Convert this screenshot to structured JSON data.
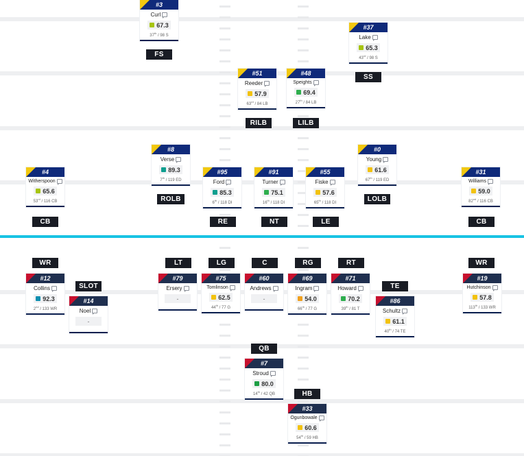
{
  "colors": {
    "offense_primary": "#1f2f4f",
    "offense_accent": "#c8102e",
    "defense_primary": "#0f2a7a",
    "defense_accent": "#f2c80f",
    "line_of_scrimmage": "#19c3e4",
    "grade_elite": "#0e9f8f",
    "grade_high": "#2fae4e",
    "grade_good": "#a6c40f",
    "grade_avg": "#f2c20f",
    "grade_low": "#f0a01f"
  },
  "icons": {
    "note": "note-icon"
  },
  "defense": {
    "fs": {
      "number": "#3",
      "name": "Curl",
      "grade": "67.3",
      "rank": "37",
      "rank_suffix": "th",
      "rank_total": "/ 98 S",
      "grade_color": "#a6c40f",
      "pos": "FS"
    },
    "ss": {
      "number": "#37",
      "name": "Lake",
      "grade": "65.3",
      "rank": "43",
      "rank_suffix": "rd",
      "rank_total": "/ 98 S",
      "grade_color": "#a6c40f",
      "pos": "SS"
    },
    "rilb": {
      "number": "#51",
      "name": "Reeder",
      "grade": "57.9",
      "rank": "63",
      "rank_suffix": "rd",
      "rank_total": "/ 84 LB",
      "grade_color": "#f2c20f",
      "pos": "RILB"
    },
    "lilb": {
      "number": "#48",
      "name": "Speights",
      "grade": "69.4",
      "rank": "27",
      "rank_suffix": "th",
      "rank_total": "/ 84 LB",
      "grade_color": "#2fae4e",
      "pos": "LILB"
    },
    "rolb": {
      "number": "#8",
      "name": "Verse",
      "grade": "89.3",
      "rank": "7",
      "rank_suffix": "th",
      "rank_total": "/ 119 ED",
      "grade_color": "#0e9f8f",
      "pos": "ROLB"
    },
    "lolb": {
      "number": "#0",
      "name": "Young",
      "grade": "61.6",
      "rank": "67",
      "rank_suffix": "th",
      "rank_total": "/ 119 ED",
      "grade_color": "#f2c20f",
      "pos": "LOLB"
    },
    "cb_left": {
      "number": "#4",
      "name": "Witherspoon",
      "grade": "65.6",
      "rank": "53",
      "rank_suffix": "rd",
      "rank_total": "/ 116 CB",
      "grade_color": "#a6c40f",
      "pos": "CB"
    },
    "re": {
      "number": "#95",
      "name": "Ford",
      "grade": "85.3",
      "rank": "6",
      "rank_suffix": "th",
      "rank_total": "/ 118 DI",
      "grade_color": "#0e9f8f",
      "pos": "RE"
    },
    "nt": {
      "number": "#91",
      "name": "Turner",
      "grade": "75.1",
      "rank": "16",
      "rank_suffix": "th",
      "rank_total": "/ 118 DI",
      "grade_color": "#2fae4e",
      "pos": "NT"
    },
    "le": {
      "number": "#55",
      "name": "Fiske",
      "grade": "57.6",
      "rank": "65",
      "rank_suffix": "th",
      "rank_total": "/ 118 DI",
      "grade_color": "#f2c20f",
      "pos": "LE"
    },
    "cb_right": {
      "number": "#31",
      "name": "Williams",
      "grade": "59.0",
      "rank": "82",
      "rank_suffix": "nd",
      "rank_total": "/ 116 CB",
      "grade_color": "#f2c20f",
      "pos": "CB"
    }
  },
  "offense": {
    "wr_left": {
      "number": "#12",
      "name": "Collins",
      "grade": "92.3",
      "rank": "2",
      "rank_suffix": "nd",
      "rank_total": "/ 133 WR",
      "grade_color": "#0e8fb0",
      "pos": "WR"
    },
    "slot": {
      "number": "#14",
      "name": "Noel",
      "grade": "-",
      "pos": "SLOT"
    },
    "lt": {
      "number": "#79",
      "name": "Ersery",
      "grade": "-",
      "pos": "LT"
    },
    "lg": {
      "number": "#75",
      "name": "Tomlinson",
      "grade": "62.5",
      "rank": "44",
      "rank_suffix": "th",
      "rank_total": "/ 77 G",
      "grade_color": "#f2c20f",
      "pos": "LG"
    },
    "c": {
      "number": "#60",
      "name": "Andrews",
      "grade": "-",
      "pos": "C"
    },
    "rg": {
      "number": "#69",
      "name": "Ingram",
      "grade": "54.0",
      "rank": "66",
      "rank_suffix": "th",
      "rank_total": "/ 77 G",
      "grade_color": "#f0a01f",
      "pos": "RG"
    },
    "rt": {
      "number": "#71",
      "name": "Howard",
      "grade": "70.2",
      "rank": "39",
      "rank_suffix": "th",
      "rank_total": "/ 81 T",
      "grade_color": "#2fae4e",
      "pos": "RT"
    },
    "te": {
      "number": "#86",
      "name": "Schultz",
      "grade": "61.1",
      "rank": "40",
      "rank_suffix": "th",
      "rank_total": "/ 74 TE",
      "grade_color": "#f2c20f",
      "pos": "TE"
    },
    "wr_right": {
      "number": "#19",
      "name": "Hutchinson",
      "grade": "57.8",
      "rank": "113",
      "rank_suffix": "th",
      "rank_total": "/ 133 WR",
      "grade_color": "#f2c20f",
      "pos": "WR"
    },
    "qb": {
      "number": "#7",
      "name": "Stroud",
      "grade": "80.0",
      "rank": "14",
      "rank_suffix": "th",
      "rank_total": "/ 42 QB",
      "grade_color": "#1e9f45",
      "pos": "QB"
    },
    "hb": {
      "number": "#33",
      "name": "Ogunbowale",
      "grade": "60.6",
      "rank": "54",
      "rank_suffix": "th",
      "rank_total": "/ 59 HB",
      "grade_color": "#f2c20f",
      "pos": "HB"
    }
  }
}
